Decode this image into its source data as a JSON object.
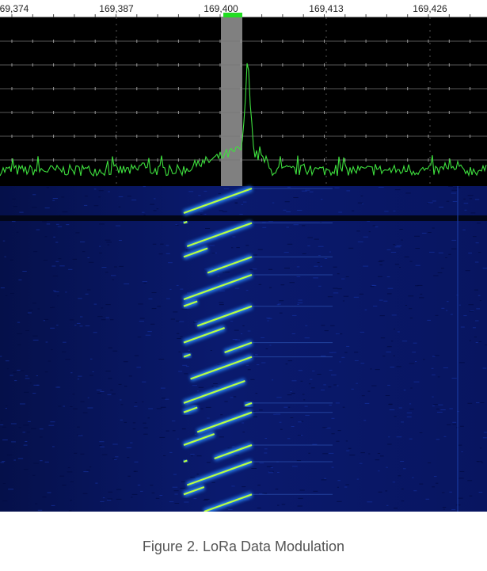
{
  "ruler": {
    "labels": [
      "69,374",
      "169,387",
      "169,400",
      "169,413",
      "169,426"
    ]
  },
  "caption": "Figure 2. LoRa Data Modulation"
}
